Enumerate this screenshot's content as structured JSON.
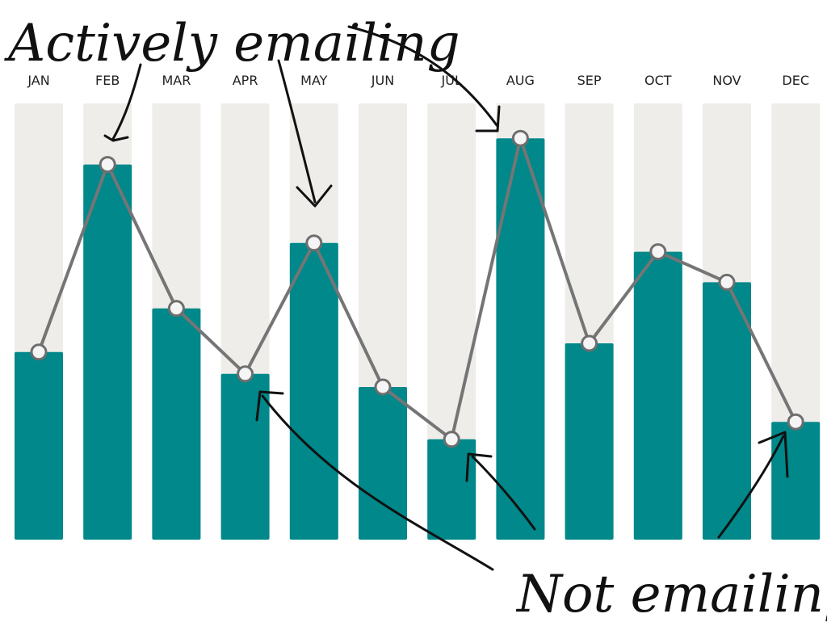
{
  "chart_data": {
    "type": "bar",
    "categories": [
      "JAN",
      "FEB",
      "MAR",
      "APR",
      "MAY",
      "JUN",
      "JUL",
      "AUG",
      "SEP",
      "OCT",
      "NOV",
      "DEC"
    ],
    "values": [
      43,
      86,
      53,
      38,
      68,
      35,
      23,
      92,
      45,
      66,
      59,
      27
    ],
    "ylim": [
      0,
      100
    ],
    "overlay": "line",
    "annotations": [
      {
        "text": "Actively emailing",
        "months": [
          "FEB",
          "MAY",
          "AUG"
        ]
      },
      {
        "text": "Not emailing",
        "months": [
          "APR",
          "JUL",
          "DEC"
        ]
      }
    ]
  },
  "colors": {
    "bar": "#00888a",
    "track": "#eeede9",
    "line": "#757575",
    "marker_fill": "#f5f5f5",
    "marker_stroke": "#6e6e6e",
    "ink": "#111111"
  }
}
